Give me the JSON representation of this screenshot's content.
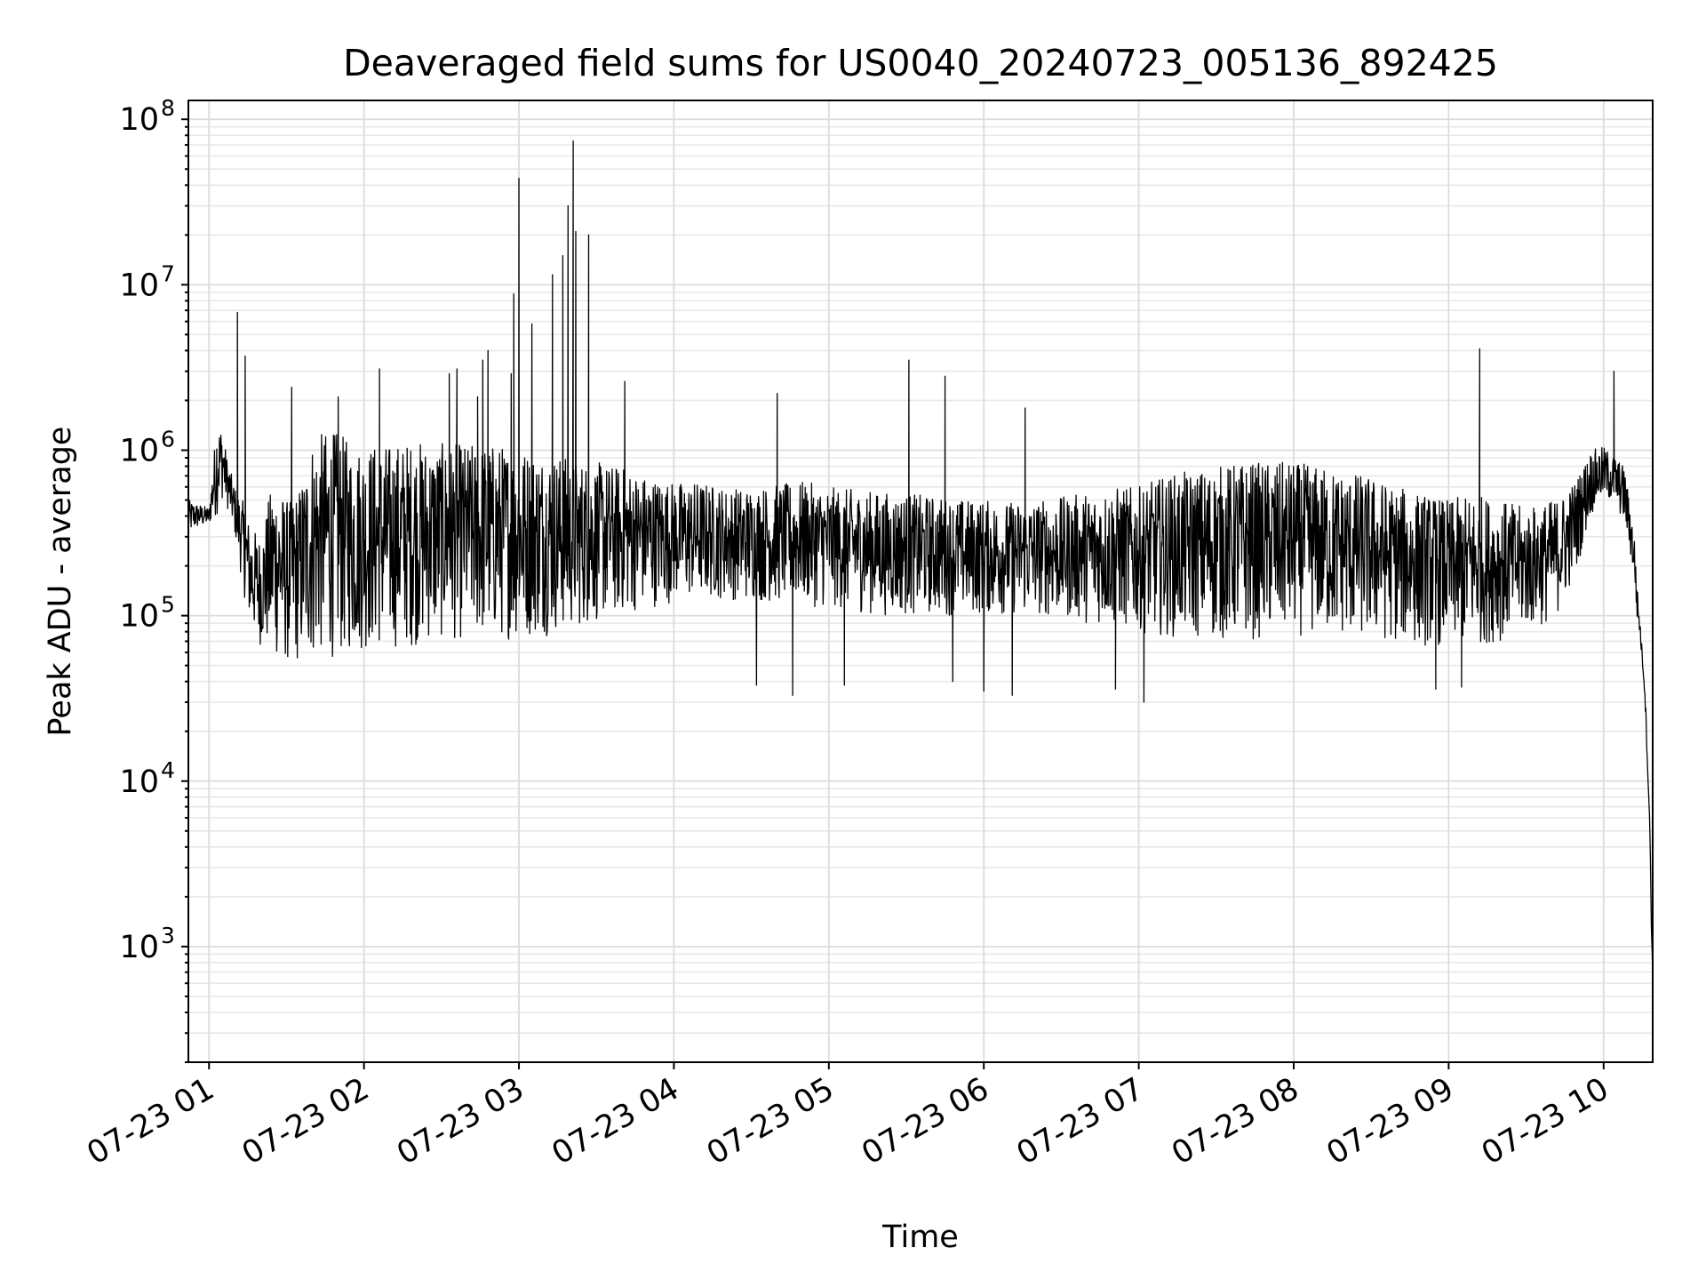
{
  "chart_data": {
    "type": "line",
    "title": "Deaveraged field sums for US0040_20240723_005136_892425",
    "xlabel": "Time",
    "ylabel": "Peak ADU - average",
    "yscale": "log",
    "ylim": [
      200,
      130000000
    ],
    "xlim": [
      "2024-07-23 00:52",
      "2024-07-23 10:19"
    ],
    "grid": true,
    "line_color": "#000000",
    "grid_color": "#dcdcdc",
    "x_ticks": [
      {
        "t": "2024-07-23 01:00",
        "label": "07-23 01"
      },
      {
        "t": "2024-07-23 02:00",
        "label": "07-23 02"
      },
      {
        "t": "2024-07-23 03:00",
        "label": "07-23 03"
      },
      {
        "t": "2024-07-23 04:00",
        "label": "07-23 04"
      },
      {
        "t": "2024-07-23 05:00",
        "label": "07-23 05"
      },
      {
        "t": "2024-07-23 06:00",
        "label": "07-23 06"
      },
      {
        "t": "2024-07-23 07:00",
        "label": "07-23 07"
      },
      {
        "t": "2024-07-23 08:00",
        "label": "07-23 08"
      },
      {
        "t": "2024-07-23 09:00",
        "label": "07-23 09"
      },
      {
        "t": "2024-07-23 10:00",
        "label": "07-23 10"
      }
    ],
    "y_ticks": [
      {
        "v": 1000,
        "base": "10",
        "exp": "3"
      },
      {
        "v": 10000,
        "base": "10",
        "exp": "4"
      },
      {
        "v": 100000,
        "base": "10",
        "exp": "5"
      },
      {
        "v": 1000000,
        "base": "10",
        "exp": "6"
      },
      {
        "v": 10000000,
        "base": "10",
        "exp": "7"
      },
      {
        "v": 100000000,
        "base": "10",
        "exp": "8"
      }
    ],
    "series": [
      {
        "style": "envelope",
        "note_x": "time",
        "x": [
          "00:52",
          "00:55",
          "01:00",
          "01:03",
          "01:05",
          "01:07",
          "01:10",
          "01:13",
          "01:16",
          "01:20",
          "01:25",
          "01:30",
          "01:35",
          "01:40",
          "01:45",
          "01:50",
          "01:55",
          "02:00",
          "02:10",
          "02:20",
          "02:30",
          "02:40",
          "02:50",
          "03:00",
          "03:10",
          "03:20",
          "03:30",
          "03:40",
          "03:50",
          "04:00",
          "04:10",
          "04:20",
          "04:30",
          "04:40",
          "04:50",
          "05:00",
          "05:10",
          "05:20",
          "05:30",
          "05:40",
          "05:50",
          "06:00",
          "06:10",
          "06:20",
          "06:30",
          "06:40",
          "06:50",
          "07:00",
          "07:10",
          "07:20",
          "07:30",
          "07:40",
          "07:50",
          "08:00",
          "08:10",
          "08:20",
          "08:30",
          "08:40",
          "08:50",
          "09:00",
          "09:10",
          "09:20",
          "09:30",
          "09:40",
          "09:45",
          "09:50",
          "09:55",
          "10:00",
          "10:05",
          "10:08",
          "10:10",
          "10:12",
          "10:13",
          "10:14",
          "10:15",
          "10:16",
          "10:17",
          "10:18",
          "10:18.5",
          "10:19"
        ],
        "upper": [
          500000,
          480000,
          450000,
          1500000,
          1400000,
          900000,
          600000,
          500000,
          350000,
          300000,
          700000,
          500000,
          600000,
          1200000,
          1300000,
          1300000,
          1100000,
          1100000,
          1100000,
          1150000,
          1100000,
          1100000,
          1100000,
          1050000,
          1000000,
          900000,
          850000,
          800000,
          700000,
          650000,
          650000,
          600000,
          600000,
          620000,
          650000,
          600000,
          580000,
          560000,
          550000,
          530000,
          510000,
          500000,
          490000,
          500000,
          520000,
          560000,
          600000,
          600000,
          700000,
          750000,
          800000,
          850000,
          850000,
          850000,
          800000,
          750000,
          700000,
          600000,
          550000,
          500000,
          550000,
          500000,
          450000,
          500000,
          550000,
          700000,
          1000000,
          1050000,
          900000,
          800000,
          500000,
          300000,
          150000,
          100000,
          60000,
          40000,
          14000,
          5000,
          1500,
          700
        ],
        "lower": [
          300000,
          330000,
          350000,
          400000,
          500000,
          450000,
          300000,
          150000,
          80000,
          65000,
          55000,
          50000,
          50000,
          52000,
          55000,
          55000,
          58000,
          60000,
          62000,
          65000,
          70000,
          70000,
          70000,
          72000,
          75000,
          80000,
          90000,
          100000,
          110000,
          120000,
          125000,
          125000,
          120000,
          118000,
          115000,
          110000,
          105000,
          100000,
          100000,
          100000,
          100000,
          100000,
          100000,
          100000,
          95000,
          90000,
          85000,
          80000,
          75000,
          72000,
          70000,
          70000,
          72000,
          75000,
          75000,
          72000,
          70000,
          68000,
          65000,
          65000,
          65000,
          70000,
          80000,
          90000,
          120000,
          200000,
          400000,
          500000,
          450000,
          350000,
          250000,
          150000,
          90000,
          75000,
          50000,
          30000,
          12000,
          4000,
          1200,
          600
        ],
        "spikes": [
          {
            "t": "01:11",
            "v": 6800000
          },
          {
            "t": "01:14",
            "v": 3700000
          },
          {
            "t": "01:32",
            "v": 2400000
          },
          {
            "t": "01:50",
            "v": 2100000
          },
          {
            "t": "02:06",
            "v": 3100000
          },
          {
            "t": "02:33",
            "v": 2900000
          },
          {
            "t": "02:36",
            "v": 3100000
          },
          {
            "t": "02:44",
            "v": 2100000
          },
          {
            "t": "02:46",
            "v": 3500000
          },
          {
            "t": "02:48",
            "v": 4000000
          },
          {
            "t": "02:57",
            "v": 2900000
          },
          {
            "t": "02:58",
            "v": 8800000
          },
          {
            "t": "03:00",
            "v": 44000000
          },
          {
            "t": "03:05",
            "v": 5800000
          },
          {
            "t": "03:13",
            "v": 11500000
          },
          {
            "t": "03:17",
            "v": 15000000
          },
          {
            "t": "03:19",
            "v": 30000000
          },
          {
            "t": "03:21",
            "v": 74000000
          },
          {
            "t": "03:22",
            "v": 21000000
          },
          {
            "t": "03:27",
            "v": 20000000
          },
          {
            "t": "03:41",
            "v": 2600000
          },
          {
            "t": "04:40",
            "v": 2200000
          },
          {
            "t": "05:31",
            "v": 3500000
          },
          {
            "t": "05:45",
            "v": 2800000
          },
          {
            "t": "06:16",
            "v": 1800000
          },
          {
            "t": "09:12",
            "v": 4100000
          },
          {
            "t": "10:04",
            "v": 3000000
          }
        ],
        "dips": [
          {
            "t": "04:32",
            "v": 38000
          },
          {
            "t": "04:46",
            "v": 33000
          },
          {
            "t": "05:06",
            "v": 38000
          },
          {
            "t": "05:48",
            "v": 40000
          },
          {
            "t": "06:00",
            "v": 35000
          },
          {
            "t": "06:11",
            "v": 33000
          },
          {
            "t": "06:51",
            "v": 36000
          },
          {
            "t": "07:02",
            "v": 30000
          },
          {
            "t": "08:55",
            "v": 36000
          },
          {
            "t": "09:05",
            "v": 37000
          }
        ]
      }
    ]
  }
}
